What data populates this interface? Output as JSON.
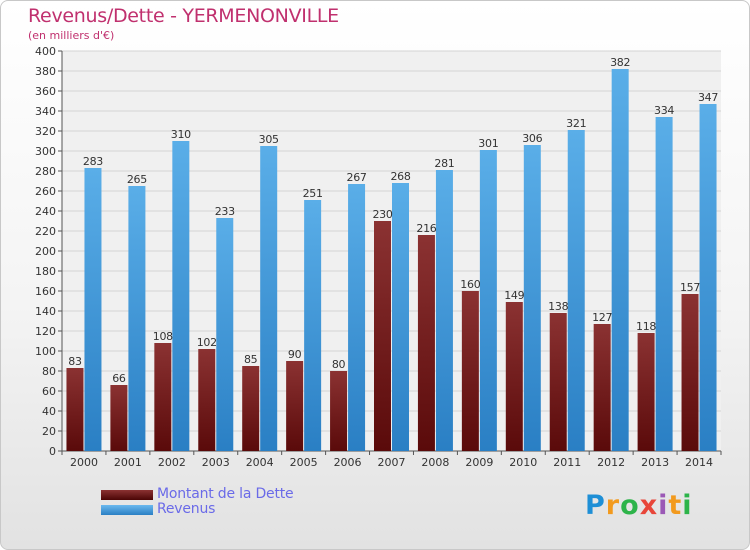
{
  "header": {
    "title": "Revenus/Dette - YERMENONVILLE",
    "subtitle": "(en milliers d'€)"
  },
  "colors": {
    "dette": "#7a1a1a",
    "revenus": "#3a94dc",
    "title": "#c0306e",
    "legend_text": "#6a6ae8"
  },
  "legend": {
    "placement": "bottom-left",
    "items": [
      {
        "label": "Montant de la Dette",
        "color": "#6b1515"
      },
      {
        "label": "Revenus",
        "color": "#3a94dc"
      }
    ]
  },
  "logo": {
    "text": "Proxiti",
    "icon": "proxiti-logo"
  },
  "chart_data": {
    "type": "bar",
    "title": "Revenus/Dette - YERMENONVILLE",
    "ylabel": "(en milliers d'€)",
    "xlabel": "",
    "ylim": [
      0,
      400
    ],
    "ytick_step": 20,
    "grid": true,
    "categories": [
      "2000",
      "2001",
      "2002",
      "2003",
      "2004",
      "2005",
      "2006",
      "2007",
      "2008",
      "2009",
      "2010",
      "2011",
      "2012",
      "2013",
      "2014"
    ],
    "series": [
      {
        "name": "Montant de la Dette",
        "values": [
          83,
          66,
          108,
          102,
          85,
          90,
          80,
          230,
          216,
          160,
          149,
          138,
          127,
          118,
          157
        ]
      },
      {
        "name": "Revenus",
        "values": [
          283,
          265,
          310,
          233,
          305,
          251,
          267,
          268,
          281,
          301,
          306,
          321,
          382,
          334,
          347
        ]
      }
    ]
  }
}
